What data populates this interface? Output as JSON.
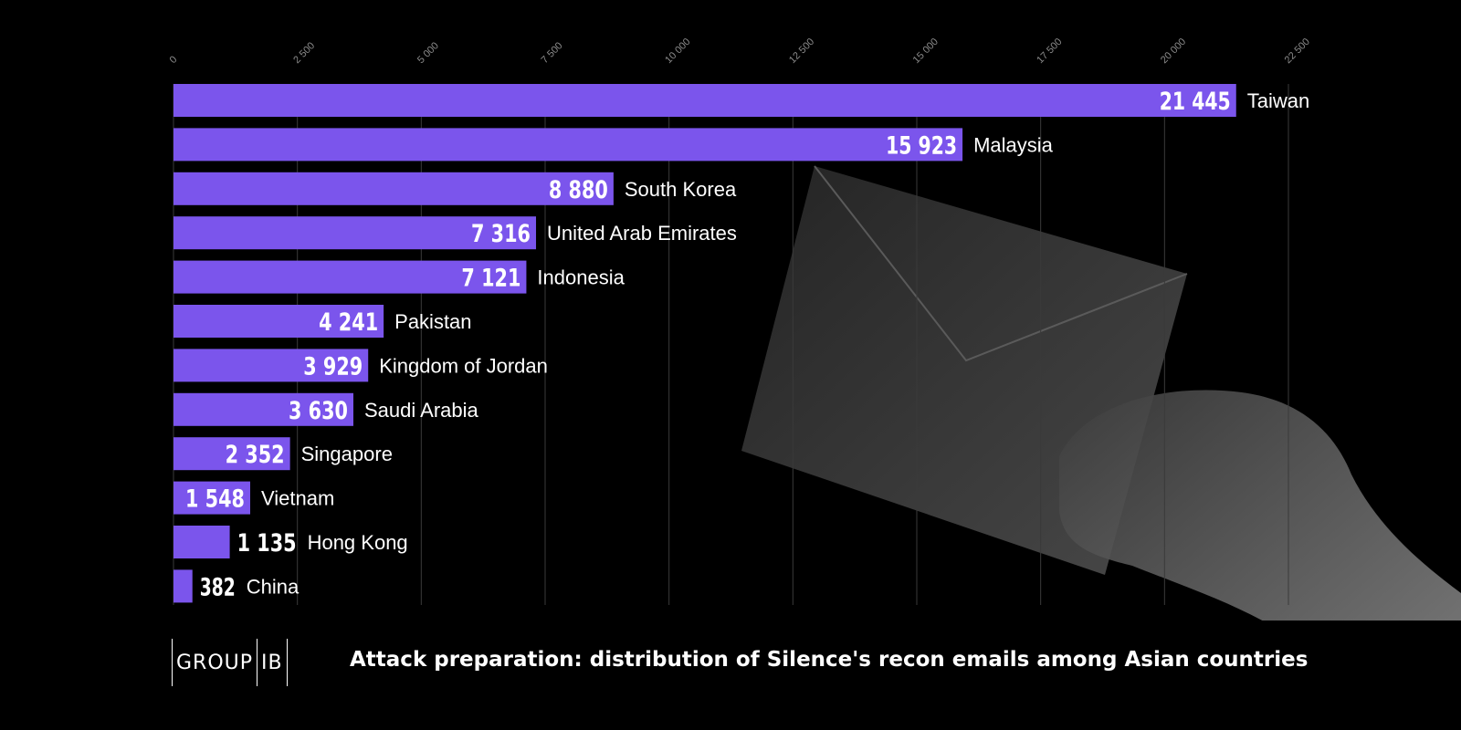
{
  "brand": {
    "logo_left": "GROUP",
    "logo_right": "IB"
  },
  "footer": {
    "title": "Attack preparation: distribution of Silence's recon emails among Asian countries"
  },
  "colors": {
    "background": "#000000",
    "bar": "#7b55ec",
    "gridline": "#3a3a3a",
    "text": "#ffffff",
    "tick": "#8a8a8a"
  },
  "decoration": {
    "illustration": "hand-holding-envelope"
  },
  "chart_data": {
    "type": "bar",
    "orientation": "horizontal",
    "categories": [
      "Taiwan",
      "Malaysia",
      "South Korea",
      "United Arab Emirates",
      "Indonesia",
      "Pakistan",
      "Kingdom of Jordan",
      "Saudi Arabia",
      "Singapore",
      "Vietnam",
      "Hong Kong",
      "China"
    ],
    "values": [
      21445,
      15923,
      8880,
      7316,
      7121,
      4241,
      3929,
      3630,
      2352,
      1548,
      1135,
      382
    ],
    "value_labels": [
      "21 445",
      "15 923",
      "8 880",
      "7 316",
      "7 121",
      "4 241",
      "3 929",
      "3 630",
      "2 352",
      "1 548",
      "1 135",
      "382"
    ],
    "x_ticks": [
      0,
      2500,
      5000,
      7500,
      10000,
      12500,
      15000,
      17500,
      20000,
      22500
    ],
    "x_tick_labels": [
      "0",
      "2 500",
      "5 000",
      "7 500",
      "10 000",
      "12 500",
      "15 000",
      "17 500",
      "20 000",
      "22 500"
    ],
    "xlim": [
      0,
      22500
    ],
    "grid": true,
    "axis_position": "top",
    "title": "Attack preparation: distribution of Silence's recon emails among Asian countries"
  }
}
